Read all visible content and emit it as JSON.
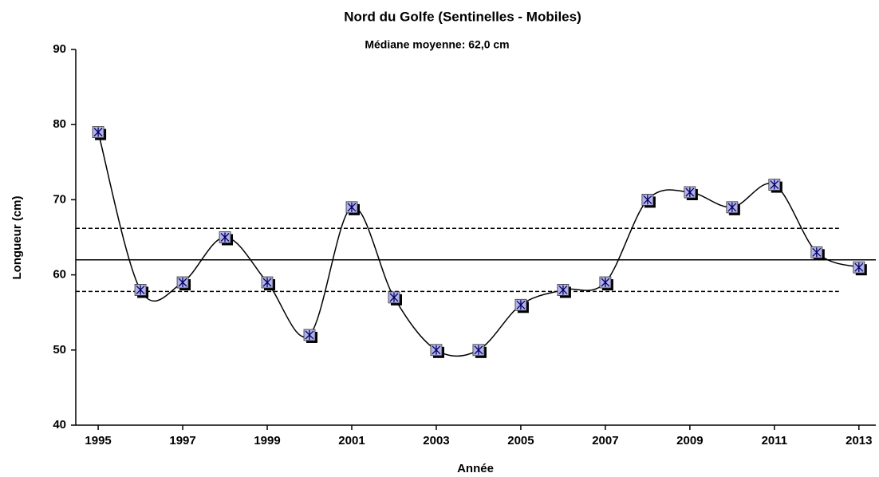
{
  "chart_data": {
    "type": "line",
    "title": "Nord du Golfe (Sentinelles - Mobiles)",
    "subtitle": "Médiane moyenne: 62,0 cm",
    "x_label": "Année",
    "y_label": "Longueur (cm)",
    "x": [
      1995,
      1996,
      1997,
      1998,
      1999,
      2000,
      2001,
      2002,
      2003,
      2004,
      2005,
      2006,
      2007,
      2008,
      2009,
      2010,
      2011,
      2012,
      2013
    ],
    "series": [
      {
        "color": "#000000",
        "marker_color": "#b3b3e6",
        "values": [
          79,
          58,
          59,
          65,
          59,
          52,
          69,
          57,
          50,
          50,
          56,
          58,
          59,
          70,
          71,
          69,
          72,
          63,
          61
        ]
      }
    ],
    "reference_lines": {
      "mean": 62,
      "lower": 57.8,
      "upper": 66.2
    },
    "xlim": [
      1994.47,
      2013.4
    ],
    "xticks": [
      1995,
      1997,
      1999,
      2001,
      2003,
      2005,
      2007,
      2009,
      2011,
      2013
    ],
    "ylim": [
      40,
      90
    ],
    "yticks": [
      40,
      50,
      60,
      70,
      80,
      90
    ]
  }
}
